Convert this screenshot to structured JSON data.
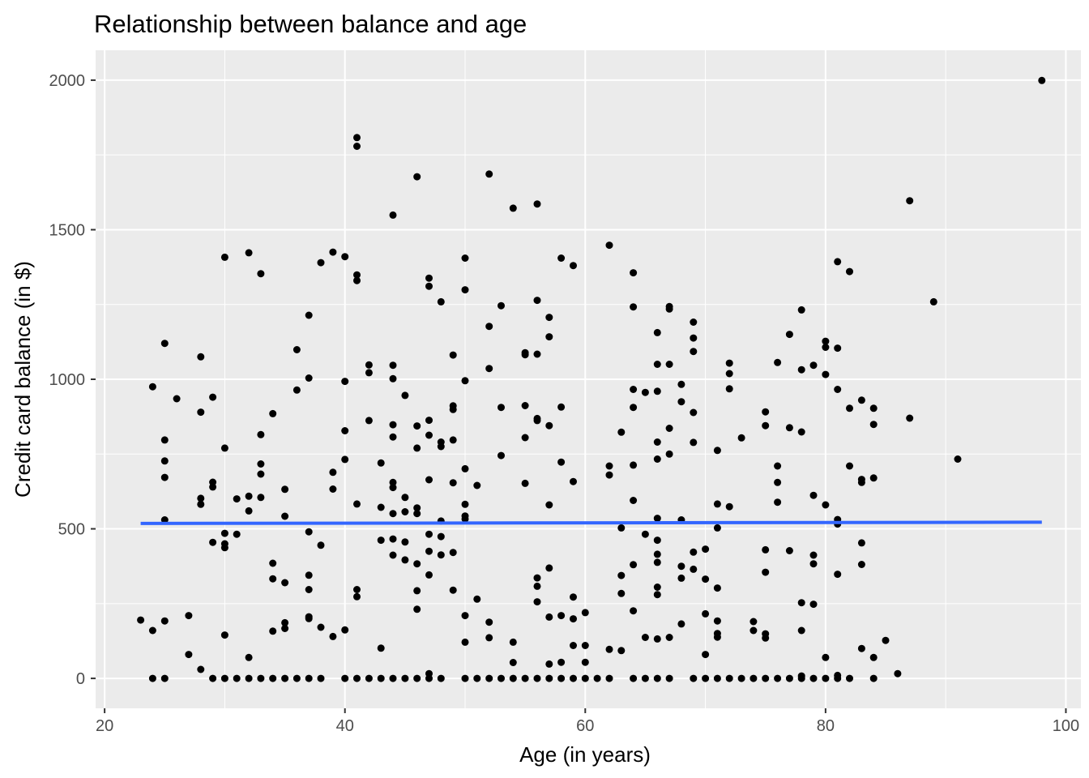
{
  "chart_data": {
    "type": "scatter",
    "title": "Relationship between balance and age",
    "xlabel": "Age (in years)",
    "ylabel": "Credit card balance (in $)",
    "xlim": [
      19.25,
      101.25
    ],
    "ylim": [
      -100,
      2100
    ],
    "x_ticks": [
      20,
      40,
      60,
      80,
      100
    ],
    "y_ticks": [
      0,
      500,
      1000,
      1500,
      2000
    ],
    "x_tick_labels": [
      "20",
      "40",
      "60",
      "80",
      "100"
    ],
    "y_tick_labels": [
      "0",
      "500",
      "1000",
      "1500",
      "2000"
    ],
    "grid": true,
    "legend": "none",
    "colors": {
      "panel": "#ebebeb",
      "grid_major": "#ffffff",
      "point": "#000000",
      "trend_line": "#3366ff"
    },
    "trend_line": {
      "type": "linear",
      "points": [
        [
          23,
          518
        ],
        [
          98,
          522
        ]
      ]
    },
    "points": [
      [
        23,
        195
      ],
      [
        24,
        975
      ],
      [
        24,
        160
      ],
      [
        24,
        0
      ],
      [
        25,
        1120
      ],
      [
        25,
        797
      ],
      [
        25,
        727
      ],
      [
        25,
        672
      ],
      [
        25,
        530
      ],
      [
        25,
        192
      ],
      [
        25,
        0
      ],
      [
        26,
        935
      ],
      [
        27,
        210
      ],
      [
        27,
        80
      ],
      [
        28,
        1075
      ],
      [
        28,
        890
      ],
      [
        28,
        602
      ],
      [
        28,
        582
      ],
      [
        28,
        30
      ],
      [
        29,
        940
      ],
      [
        29,
        656
      ],
      [
        29,
        640
      ],
      [
        29,
        455
      ],
      [
        29,
        0
      ],
      [
        30,
        1408
      ],
      [
        30,
        770
      ],
      [
        30,
        485
      ],
      [
        30,
        450
      ],
      [
        30,
        437
      ],
      [
        30,
        145
      ],
      [
        30,
        0
      ],
      [
        31,
        600
      ],
      [
        31,
        482
      ],
      [
        31,
        0
      ],
      [
        32,
        1423
      ],
      [
        32,
        609
      ],
      [
        32,
        560
      ],
      [
        32,
        70
      ],
      [
        32,
        0
      ],
      [
        33,
        1353
      ],
      [
        33,
        815
      ],
      [
        33,
        717
      ],
      [
        33,
        683
      ],
      [
        33,
        605
      ],
      [
        33,
        0
      ],
      [
        34,
        885
      ],
      [
        34,
        385
      ],
      [
        34,
        333
      ],
      [
        34,
        158
      ],
      [
        34,
        0
      ],
      [
        35,
        632
      ],
      [
        35,
        542
      ],
      [
        35,
        320
      ],
      [
        35,
        186
      ],
      [
        35,
        167
      ],
      [
        35,
        0
      ],
      [
        36,
        1099
      ],
      [
        36,
        964
      ],
      [
        36,
        0
      ],
      [
        37,
        1214
      ],
      [
        37,
        1004
      ],
      [
        37,
        490
      ],
      [
        37,
        345
      ],
      [
        37,
        297
      ],
      [
        37,
        206
      ],
      [
        37,
        200
      ],
      [
        37,
        0
      ],
      [
        38,
        1390
      ],
      [
        38,
        445
      ],
      [
        38,
        171
      ],
      [
        38,
        0
      ],
      [
        39,
        1425
      ],
      [
        39,
        689
      ],
      [
        39,
        633
      ],
      [
        39,
        140
      ],
      [
        40,
        1410
      ],
      [
        40,
        993
      ],
      [
        40,
        828
      ],
      [
        40,
        732
      ],
      [
        40,
        162
      ],
      [
        40,
        0
      ],
      [
        41,
        1808
      ],
      [
        41,
        1779
      ],
      [
        41,
        1349
      ],
      [
        41,
        1330
      ],
      [
        41,
        583
      ],
      [
        41,
        297
      ],
      [
        41,
        273
      ],
      [
        41,
        0
      ],
      [
        42,
        1048
      ],
      [
        42,
        1022
      ],
      [
        42,
        862
      ],
      [
        42,
        0
      ],
      [
        43,
        720
      ],
      [
        43,
        572
      ],
      [
        43,
        462
      ],
      [
        43,
        101
      ],
      [
        43,
        0
      ],
      [
        44,
        1549
      ],
      [
        44,
        1047
      ],
      [
        44,
        1002
      ],
      [
        44,
        848
      ],
      [
        44,
        807
      ],
      [
        44,
        655
      ],
      [
        44,
        638
      ],
      [
        44,
        551
      ],
      [
        44,
        466
      ],
      [
        44,
        412
      ],
      [
        44,
        0
      ],
      [
        45,
        946
      ],
      [
        45,
        605
      ],
      [
        45,
        557
      ],
      [
        45,
        456
      ],
      [
        45,
        396
      ],
      [
        45,
        0
      ],
      [
        46,
        1677
      ],
      [
        46,
        844
      ],
      [
        46,
        770
      ],
      [
        46,
        570
      ],
      [
        46,
        551
      ],
      [
        46,
        383
      ],
      [
        46,
        293
      ],
      [
        46,
        231
      ],
      [
        46,
        0
      ],
      [
        47,
        1338
      ],
      [
        47,
        1311
      ],
      [
        47,
        863
      ],
      [
        47,
        813
      ],
      [
        47,
        664
      ],
      [
        47,
        482
      ],
      [
        47,
        425
      ],
      [
        47,
        346
      ],
      [
        47,
        16
      ],
      [
        47,
        0
      ],
      [
        48,
        1259
      ],
      [
        48,
        790
      ],
      [
        48,
        775
      ],
      [
        48,
        526
      ],
      [
        48,
        474
      ],
      [
        48,
        413
      ],
      [
        48,
        0
      ],
      [
        49,
        1081
      ],
      [
        49,
        911
      ],
      [
        49,
        899
      ],
      [
        49,
        797
      ],
      [
        49,
        654
      ],
      [
        49,
        421
      ],
      [
        49,
        295
      ],
      [
        50,
        1405
      ],
      [
        50,
        1299
      ],
      [
        50,
        995
      ],
      [
        50,
        701
      ],
      [
        50,
        582
      ],
      [
        50,
        543
      ],
      [
        50,
        533
      ],
      [
        50,
        210
      ],
      [
        50,
        121
      ],
      [
        50,
        0
      ],
      [
        51,
        645
      ],
      [
        51,
        265
      ],
      [
        51,
        0
      ],
      [
        52,
        1686
      ],
      [
        52,
        1177
      ],
      [
        52,
        1036
      ],
      [
        52,
        188
      ],
      [
        52,
        136
      ],
      [
        52,
        0
      ],
      [
        53,
        1246
      ],
      [
        53,
        906
      ],
      [
        53,
        745
      ],
      [
        53,
        0
      ],
      [
        54,
        1572
      ],
      [
        54,
        121
      ],
      [
        54,
        53
      ],
      [
        54,
        0
      ],
      [
        55,
        1089
      ],
      [
        55,
        1082
      ],
      [
        55,
        912
      ],
      [
        55,
        805
      ],
      [
        55,
        652
      ],
      [
        55,
        0
      ],
      [
        56,
        1586
      ],
      [
        56,
        1264
      ],
      [
        56,
        1084
      ],
      [
        56,
        869
      ],
      [
        56,
        862
      ],
      [
        56,
        336
      ],
      [
        56,
        308
      ],
      [
        56,
        256
      ],
      [
        56,
        0
      ],
      [
        57,
        1207
      ],
      [
        57,
        1142
      ],
      [
        57,
        845
      ],
      [
        57,
        580
      ],
      [
        57,
        369
      ],
      [
        57,
        205
      ],
      [
        57,
        48
      ],
      [
        57,
        0
      ],
      [
        58,
        1405
      ],
      [
        58,
        907
      ],
      [
        58,
        723
      ],
      [
        58,
        210
      ],
      [
        58,
        54
      ],
      [
        58,
        0
      ],
      [
        59,
        1380
      ],
      [
        59,
        658
      ],
      [
        59,
        272
      ],
      [
        59,
        199
      ],
      [
        59,
        110
      ],
      [
        59,
        0
      ],
      [
        60,
        220
      ],
      [
        60,
        110
      ],
      [
        60,
        54
      ],
      [
        60,
        0
      ],
      [
        61,
        0
      ],
      [
        62,
        1448
      ],
      [
        62,
        710
      ],
      [
        62,
        680
      ],
      [
        62,
        97
      ],
      [
        62,
        0
      ],
      [
        63,
        823
      ],
      [
        63,
        503
      ],
      [
        63,
        344
      ],
      [
        63,
        284
      ],
      [
        63,
        93
      ],
      [
        64,
        1356
      ],
      [
        64,
        1242
      ],
      [
        64,
        966
      ],
      [
        64,
        906
      ],
      [
        64,
        713
      ],
      [
        64,
        595
      ],
      [
        64,
        380
      ],
      [
        64,
        226
      ],
      [
        64,
        0
      ],
      [
        65,
        956
      ],
      [
        65,
        482
      ],
      [
        65,
        137
      ],
      [
        65,
        0
      ],
      [
        66,
        1156
      ],
      [
        66,
        1050
      ],
      [
        66,
        960
      ],
      [
        66,
        790
      ],
      [
        66,
        733
      ],
      [
        66,
        535
      ],
      [
        66,
        462
      ],
      [
        66,
        415
      ],
      [
        66,
        388
      ],
      [
        66,
        305
      ],
      [
        66,
        280
      ],
      [
        66,
        132
      ],
      [
        66,
        0
      ],
      [
        67,
        1243
      ],
      [
        67,
        1235
      ],
      [
        67,
        1050
      ],
      [
        67,
        836
      ],
      [
        67,
        750
      ],
      [
        67,
        137
      ],
      [
        67,
        0
      ],
      [
        68,
        983
      ],
      [
        68,
        925
      ],
      [
        68,
        530
      ],
      [
        68,
        375
      ],
      [
        68,
        335
      ],
      [
        68,
        182
      ],
      [
        69,
        1191
      ],
      [
        69,
        1138
      ],
      [
        69,
        1093
      ],
      [
        69,
        889
      ],
      [
        69,
        789
      ],
      [
        69,
        422
      ],
      [
        69,
        365
      ],
      [
        69,
        0
      ],
      [
        70,
        432
      ],
      [
        70,
        332
      ],
      [
        70,
        216
      ],
      [
        70,
        80
      ],
      [
        70,
        0
      ],
      [
        71,
        762
      ],
      [
        71,
        583
      ],
      [
        71,
        503
      ],
      [
        71,
        302
      ],
      [
        71,
        192
      ],
      [
        71,
        150
      ],
      [
        71,
        138
      ],
      [
        71,
        0
      ],
      [
        72,
        1054
      ],
      [
        72,
        1019
      ],
      [
        72,
        968
      ],
      [
        72,
        574
      ],
      [
        72,
        0
      ],
      [
        73,
        804
      ],
      [
        73,
        0
      ],
      [
        74,
        190
      ],
      [
        74,
        160
      ],
      [
        74,
        0
      ],
      [
        75,
        891
      ],
      [
        75,
        845
      ],
      [
        75,
        430
      ],
      [
        75,
        355
      ],
      [
        75,
        149
      ],
      [
        75,
        135
      ],
      [
        75,
        0
      ],
      [
        76,
        1056
      ],
      [
        76,
        710
      ],
      [
        76,
        655
      ],
      [
        76,
        589
      ],
      [
        76,
        0
      ],
      [
        77,
        1150
      ],
      [
        77,
        838
      ],
      [
        77,
        427
      ],
      [
        77,
        0
      ],
      [
        78,
        1232
      ],
      [
        78,
        1032
      ],
      [
        78,
        824
      ],
      [
        78,
        253
      ],
      [
        78,
        160
      ],
      [
        78,
        8
      ],
      [
        78,
        0
      ],
      [
        79,
        1047
      ],
      [
        79,
        612
      ],
      [
        79,
        412
      ],
      [
        79,
        383
      ],
      [
        79,
        248
      ],
      [
        79,
        0
      ],
      [
        80,
        1127
      ],
      [
        80,
        1107
      ],
      [
        80,
        1016
      ],
      [
        80,
        580
      ],
      [
        80,
        70
      ],
      [
        80,
        0
      ],
      [
        81,
        1393
      ],
      [
        81,
        1104
      ],
      [
        81,
        966
      ],
      [
        81,
        531
      ],
      [
        81,
        516
      ],
      [
        81,
        348
      ],
      [
        81,
        10
      ],
      [
        81,
        0
      ],
      [
        82,
        1360
      ],
      [
        82,
        903
      ],
      [
        82,
        710
      ],
      [
        82,
        0
      ],
      [
        83,
        930
      ],
      [
        83,
        665
      ],
      [
        83,
        655
      ],
      [
        83,
        453
      ],
      [
        83,
        381
      ],
      [
        83,
        100
      ],
      [
        84,
        903
      ],
      [
        84,
        849
      ],
      [
        84,
        670
      ],
      [
        84,
        70
      ],
      [
        84,
        0
      ],
      [
        85,
        127
      ],
      [
        86,
        16
      ],
      [
        87,
        1597
      ],
      [
        87,
        870
      ],
      [
        89,
        1259
      ],
      [
        91,
        733
      ],
      [
        98,
        1999
      ]
    ]
  }
}
